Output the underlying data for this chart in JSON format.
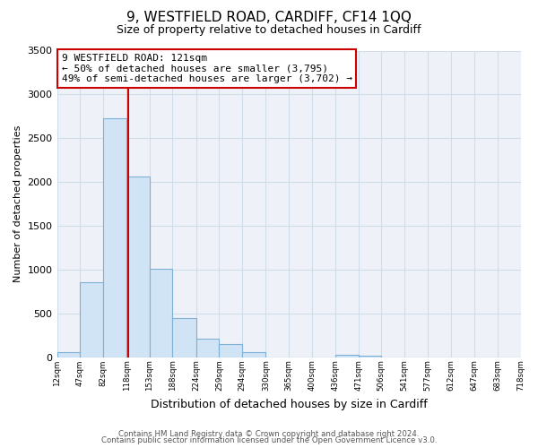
{
  "title": "9, WESTFIELD ROAD, CARDIFF, CF14 1QQ",
  "subtitle": "Size of property relative to detached houses in Cardiff",
  "xlabel": "Distribution of detached houses by size in Cardiff",
  "ylabel": "Number of detached properties",
  "footnote1": "Contains HM Land Registry data © Crown copyright and database right 2024.",
  "footnote2": "Contains public sector information licensed under the Open Government Licence v3.0.",
  "bar_edges": [
    12,
    47,
    82,
    118,
    153,
    188,
    224,
    259,
    294,
    330,
    365,
    400,
    436,
    471,
    506,
    541,
    577,
    612,
    647,
    683,
    718
  ],
  "bar_heights": [
    55,
    850,
    2730,
    2060,
    1010,
    450,
    210,
    145,
    60,
    0,
    0,
    0,
    30,
    15,
    0,
    0,
    0,
    0,
    0,
    0
  ],
  "bar_color": "#d0e4f5",
  "bar_edgecolor": "#7db0d4",
  "property_line_x": 121,
  "annotation_title": "9 WESTFIELD ROAD: 121sqm",
  "annotation_line1": "← 50% of detached houses are smaller (3,795)",
  "annotation_line2": "49% of semi-detached houses are larger (3,702) →",
  "annotation_box_edgecolor": "#cc0000",
  "property_line_color": "#cc0000",
  "ylim": [
    0,
    3500
  ],
  "xlim": [
    12,
    718
  ],
  "tick_labels": [
    "12sqm",
    "47sqm",
    "82sqm",
    "118sqm",
    "153sqm",
    "188sqm",
    "224sqm",
    "259sqm",
    "294sqm",
    "330sqm",
    "365sqm",
    "400sqm",
    "436sqm",
    "471sqm",
    "506sqm",
    "541sqm",
    "577sqm",
    "612sqm",
    "647sqm",
    "683sqm",
    "718sqm"
  ],
  "tick_positions": [
    12,
    47,
    82,
    118,
    153,
    188,
    224,
    259,
    294,
    330,
    365,
    400,
    436,
    471,
    506,
    541,
    577,
    612,
    647,
    683,
    718
  ],
  "grid_color": "#d0dce8",
  "background_color": "#ffffff",
  "plot_bg_color": "#eef2f8"
}
